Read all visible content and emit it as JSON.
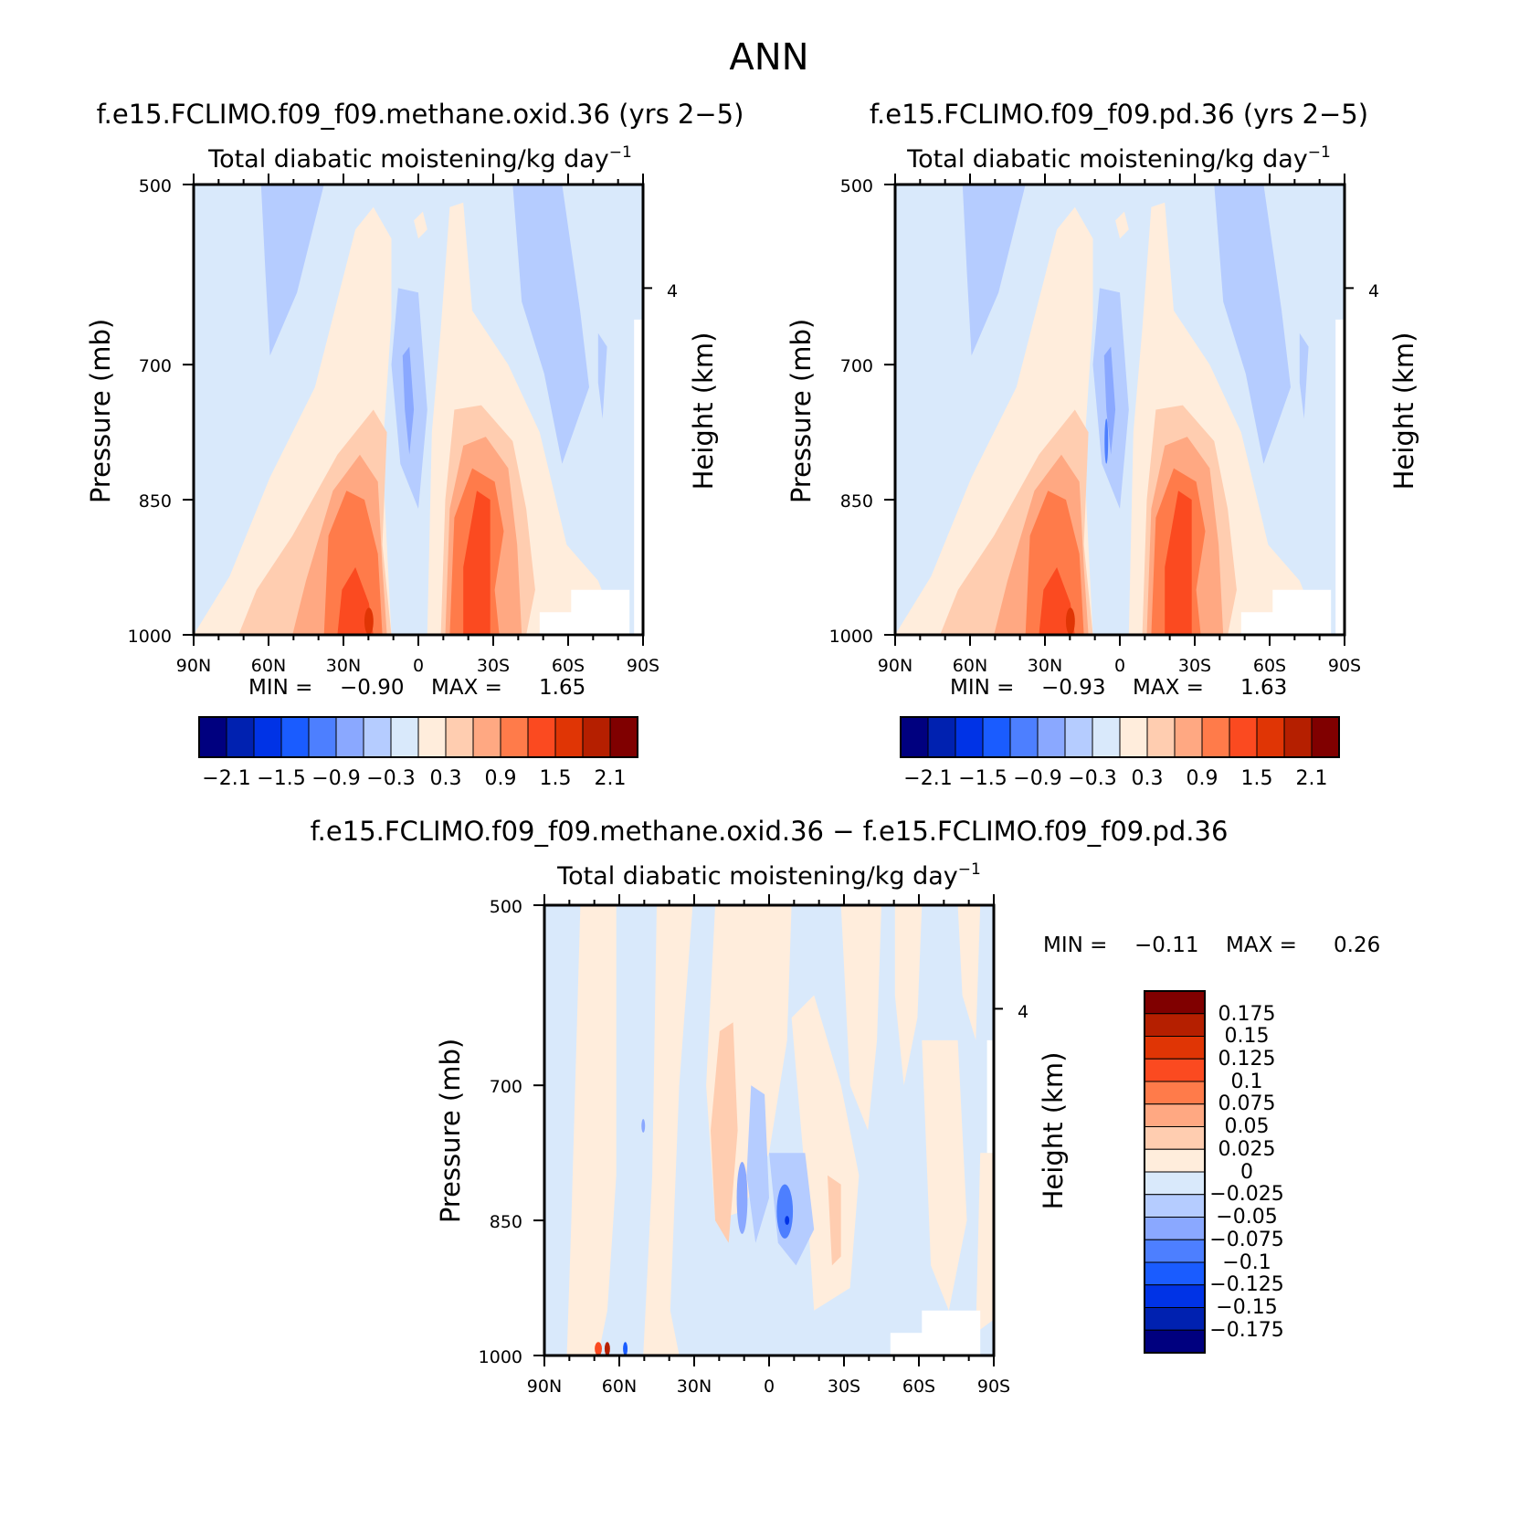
{
  "figure": {
    "title": "ANN"
  },
  "colors": {
    "levels_diverging": [
      "#00007f",
      "#0021b0",
      "#0033e6",
      "#1a5cff",
      "#4d7fff",
      "#8aa8ff",
      "#b5ccff",
      "#d9e9fb",
      "#ffeddc",
      "#ffcdb0",
      "#ffa882",
      "#ff7b4a",
      "#fb4a20",
      "#e03505",
      "#b51f00",
      "#800000"
    ]
  },
  "chart_data": [
    {
      "type": "heatmap",
      "title": "f.e15.FCLIMO.f09_f09.methane.oxid.36 (yrs 2−5)",
      "variable": "Total diabatic moistening/kg day",
      "variable_exponent": "−1",
      "xlabel": "",
      "ylabel": "Pressure (mb)",
      "ylabel_right": "Height (km)",
      "x_ticks": [
        "90N",
        "60N",
        "30N",
        "0",
        "30S",
        "60S",
        "90S"
      ],
      "y_ticks": [
        "500",
        "700",
        "850",
        "1000"
      ],
      "right_ticks": [
        "4"
      ],
      "min_label": "MIN =",
      "min_value": "−0.90",
      "max_label": "MAX =",
      "max_value": "1.65",
      "colorbar": {
        "orientation": "horizontal",
        "tick_labels": [
          "−2.1",
          "−1.5",
          "−0.9",
          "−0.3",
          "0.3",
          "0.9",
          "1.5",
          "2.1"
        ]
      },
      "contour_levels": [
        -2.1,
        -1.8,
        -1.5,
        -1.2,
        -0.9,
        -0.6,
        -0.3,
        0,
        0.3,
        0.6,
        0.9,
        1.2,
        1.5,
        1.8,
        2.1
      ]
    },
    {
      "type": "heatmap",
      "title": "f.e15.FCLIMO.f09_f09.pd.36 (yrs 2−5)",
      "variable": "Total diabatic moistening/kg day",
      "variable_exponent": "−1",
      "xlabel": "",
      "ylabel": "Pressure (mb)",
      "ylabel_right": "Height (km)",
      "x_ticks": [
        "90N",
        "60N",
        "30N",
        "0",
        "30S",
        "60S",
        "90S"
      ],
      "y_ticks": [
        "500",
        "700",
        "850",
        "1000"
      ],
      "right_ticks": [
        "4"
      ],
      "min_label": "MIN =",
      "min_value": "−0.93",
      "max_label": "MAX =",
      "max_value": "1.63",
      "colorbar": {
        "orientation": "horizontal",
        "tick_labels": [
          "−2.1",
          "−1.5",
          "−0.9",
          "−0.3",
          "0.3",
          "0.9",
          "1.5",
          "2.1"
        ]
      },
      "contour_levels": [
        -2.1,
        -1.8,
        -1.5,
        -1.2,
        -0.9,
        -0.6,
        -0.3,
        0,
        0.3,
        0.6,
        0.9,
        1.2,
        1.5,
        1.8,
        2.1
      ]
    },
    {
      "type": "heatmap",
      "title": "f.e15.FCLIMO.f09_f09.methane.oxid.36 − f.e15.FCLIMO.f09_f09.pd.36",
      "variable": "Total diabatic moistening/kg day",
      "variable_exponent": "−1",
      "xlabel": "",
      "ylabel": "Pressure (mb)",
      "ylabel_right": "Height (km)",
      "x_ticks": [
        "90N",
        "60N",
        "30N",
        "0",
        "30S",
        "60S",
        "90S"
      ],
      "y_ticks": [
        "500",
        "700",
        "850",
        "1000"
      ],
      "right_ticks": [
        "4"
      ],
      "min_label": "MIN =",
      "min_value": "−0.11",
      "max_label": "MAX =",
      "max_value": "0.26",
      "colorbar": {
        "orientation": "vertical",
        "tick_labels": [
          "0.175",
          "0.15",
          "0.125",
          "0.1",
          "0.075",
          "0.05",
          "0.025",
          "0",
          "−0.025",
          "−0.05",
          "−0.075",
          "−0.1",
          "−0.125",
          "−0.15",
          "−0.175"
        ]
      },
      "contour_levels": [
        -0.175,
        -0.15,
        -0.125,
        -0.1,
        -0.075,
        -0.05,
        -0.025,
        0,
        0.025,
        0.05,
        0.075,
        0.1,
        0.125,
        0.15,
        0.175
      ]
    }
  ]
}
